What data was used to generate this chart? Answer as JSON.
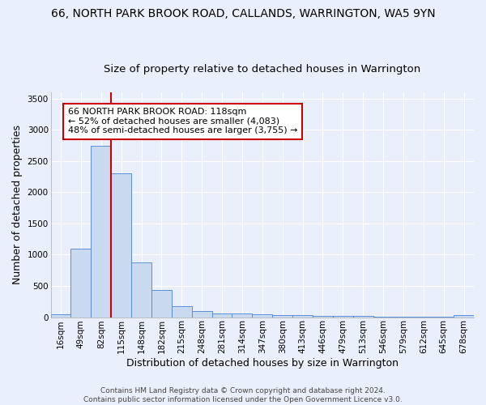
{
  "title1": "66, NORTH PARK BROOK ROAD, CALLANDS, WARRINGTON, WA5 9YN",
  "title2": "Size of property relative to detached houses in Warrington",
  "xlabel": "Distribution of detached houses by size in Warrington",
  "ylabel": "Number of detached properties",
  "categories": [
    "16sqm",
    "49sqm",
    "82sqm",
    "115sqm",
    "148sqm",
    "182sqm",
    "215sqm",
    "248sqm",
    "281sqm",
    "314sqm",
    "347sqm",
    "380sqm",
    "413sqm",
    "446sqm",
    "479sqm",
    "513sqm",
    "546sqm",
    "579sqm",
    "612sqm",
    "645sqm",
    "678sqm"
  ],
  "values": [
    50,
    1100,
    2750,
    2300,
    880,
    440,
    175,
    100,
    60,
    55,
    40,
    35,
    30,
    20,
    20,
    15,
    10,
    10,
    8,
    5,
    30
  ],
  "bar_color": "#c8d9f0",
  "bar_edge_color": "#5b8fd4",
  "red_line_x": 2.5,
  "annotation_text": "66 NORTH PARK BROOK ROAD: 118sqm\n← 52% of detached houses are smaller (4,083)\n48% of semi-detached houses are larger (3,755) →",
  "annotation_box_color": "#ffffff",
  "annotation_box_edge_color": "#cc0000",
  "ylim": [
    0,
    3600
  ],
  "yticks": [
    0,
    500,
    1000,
    1500,
    2000,
    2500,
    3000,
    3500
  ],
  "background_color": "#eaf0fb",
  "grid_color": "#ffffff",
  "footer_text": "Contains HM Land Registry data © Crown copyright and database right 2024.\nContains public sector information licensed under the Open Government Licence v3.0.",
  "title1_fontsize": 10,
  "title2_fontsize": 9.5,
  "xlabel_fontsize": 9,
  "ylabel_fontsize": 9,
  "tick_fontsize": 7.5,
  "annotation_fontsize": 8,
  "footer_fontsize": 6.5
}
